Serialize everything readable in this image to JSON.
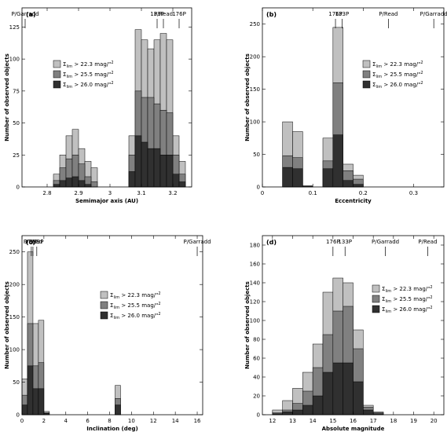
{
  "chart_data": [
    {
      "type": "bar",
      "panel_label": "(a)",
      "xlabel": "Semimajor axis (AU)",
      "ylabel": "Number of observed objects",
      "xlim": [
        2.72,
        3.26
      ],
      "ylim": [
        0,
        140
      ],
      "xticks": [
        2.8,
        2.9,
        3,
        3.1,
        3.2
      ],
      "xtick_labels": [
        "2.8",
        "2.9",
        "3",
        "3.1",
        "3.2"
      ],
      "yticks": [
        0,
        25,
        50,
        75,
        100,
        125
      ],
      "ytick_labels": [
        "0",
        "25",
        "50",
        "75",
        "100",
        "125"
      ],
      "bin_edges": [
        2.82,
        2.84,
        2.86,
        2.88,
        2.9,
        2.92,
        2.94,
        2.96,
        2.98,
        3.0,
        3.02,
        3.04,
        3.06,
        3.08,
        3.1,
        3.12,
        3.14,
        3.16,
        3.18,
        3.2,
        3.22,
        3.24
      ],
      "series": [
        {
          "name": "Σ_lim > 22.3 mag/\"²",
          "color": "#c0c0c0",
          "values": [
            10,
            25,
            40,
            45,
            30,
            20,
            15,
            0,
            0,
            0,
            0,
            0,
            40,
            123,
            115,
            108,
            115,
            120,
            115,
            40,
            20
          ]
        },
        {
          "name": "Σ_lim > 25.5 mag/\"²",
          "color": "#808080",
          "values": [
            5,
            15,
            22,
            25,
            18,
            8,
            4,
            0,
            0,
            0,
            0,
            0,
            25,
            75,
            70,
            70,
            65,
            60,
            58,
            25,
            10
          ]
        },
        {
          "name": "Σ_lim > 26.0 mag/\"²",
          "color": "#303030",
          "values": [
            2,
            5,
            7,
            8,
            5,
            2,
            0,
            0,
            0,
            0,
            0,
            0,
            12,
            40,
            35,
            30,
            30,
            25,
            25,
            10,
            4
          ]
        }
      ],
      "annotations": [
        {
          "text": "P/Garradd",
          "x": 2.73
        },
        {
          "text": "133P",
          "x": 3.15
        },
        {
          "text": "P/Read",
          "x": 3.17
        },
        {
          "text": "176P",
          "x": 3.22
        }
      ],
      "legend": {
        "placement": "center-left",
        "entries": [
          {
            "symbol": "Σ",
            "sub": "lim",
            "rest": " > 22.3 mag/\"",
            "sup": "2"
          },
          {
            "symbol": "Σ",
            "sub": "lim",
            "rest": " > 25.5 mag/\"",
            "sup": "2"
          },
          {
            "symbol": "Σ",
            "sub": "lim",
            "rest": " > 26.0 mag/\"",
            "sup": "2"
          }
        ]
      }
    },
    {
      "type": "bar",
      "panel_label": "(b)",
      "xlabel": "Eccentricity",
      "ylabel": "Number of observed objects",
      "xlim": [
        0,
        0.36
      ],
      "ylim": [
        0,
        275
      ],
      "xticks": [
        0,
        0.1,
        0.2,
        0.3
      ],
      "xtick_labels": [
        "0",
        "0.1",
        "0.2",
        "0.3"
      ],
      "yticks": [
        0,
        50,
        100,
        150,
        200,
        250
      ],
      "ytick_labels": [
        "0",
        "50",
        "100",
        "150",
        "200",
        "250"
      ],
      "bin_edges": [
        0.0,
        0.02,
        0.04,
        0.06,
        0.08,
        0.1,
        0.12,
        0.14,
        0.16,
        0.18,
        0.2,
        0.22
      ],
      "series": [
        {
          "name": "Σ_lim > 22.3 mag/\"²",
          "color": "#c0c0c0",
          "values": [
            0,
            0,
            100,
            85,
            2,
            0,
            75,
            245,
            35,
            18,
            0
          ]
        },
        {
          "name": "Σ_lim > 25.5 mag/\"²",
          "color": "#808080",
          "values": [
            0,
            0,
            48,
            45,
            1,
            0,
            40,
            160,
            25,
            12,
            0
          ]
        },
        {
          "name": "Σ_lim > 26.0 mag/\"²",
          "color": "#303030",
          "values": [
            0,
            0,
            30,
            28,
            0,
            0,
            28,
            80,
            10,
            4,
            0
          ]
        }
      ],
      "annotations": [
        {
          "text": "176P",
          "x": 0.145
        },
        {
          "text": "133P",
          "x": 0.158
        },
        {
          "text": "P/Read",
          "x": 0.25
        },
        {
          "text": "P/Garradd",
          "x": 0.34
        }
      ],
      "legend": {
        "placement": "top-right",
        "entries": [
          {
            "symbol": "Σ",
            "sub": "lim",
            "rest": " > 22.3 mag/\"",
            "sup": "2"
          },
          {
            "symbol": "Σ",
            "sub": "lim",
            "rest": " > 25.5 mag/\"",
            "sup": "2"
          },
          {
            "symbol": "Σ",
            "sub": "lim",
            "rest": " > 26.0 mag/\"",
            "sup": "2"
          }
        ]
      }
    },
    {
      "type": "bar",
      "panel_label": "(c)",
      "xlabel": "Inclination (deg)",
      "ylabel": "Number of observed objects",
      "xlim": [
        0,
        16.5
      ],
      "ylim": [
        0,
        275
      ],
      "xticks": [
        0,
        2,
        4,
        6,
        8,
        10,
        12,
        14,
        16
      ],
      "xtick_labels": [
        "0",
        "2",
        "4",
        "6",
        "8",
        "10",
        "12",
        "14",
        "16"
      ],
      "yticks": [
        0,
        50,
        100,
        150,
        200,
        250
      ],
      "ytick_labels": [
        "0",
        "50",
        "100",
        "150",
        "200",
        "250"
      ],
      "bin_edges": [
        0.0,
        0.5,
        1.0,
        1.5,
        2.0,
        2.5,
        3.0,
        8.5,
        9.0,
        9.5
      ],
      "series": [
        {
          "name": "Σ_lim > 22.3 mag/\"²",
          "color": "#c0c0c0",
          "values": [
            55,
            250,
            140,
            145,
            5,
            0,
            0,
            45,
            0
          ]
        },
        {
          "name": "Σ_lim > 25.5 mag/\"²",
          "color": "#808080",
          "values": [
            30,
            140,
            75,
            80,
            3,
            0,
            0,
            25,
            0
          ]
        },
        {
          "name": "Σ_lim > 26.0 mag/\"²",
          "color": "#303030",
          "values": [
            15,
            75,
            40,
            40,
            2,
            0,
            0,
            15,
            0
          ]
        }
      ],
      "annotations": [
        {
          "text": "P/Read",
          "x": 1.0
        },
        {
          "text": "176P",
          "x": 0.85
        },
        {
          "text": "133P",
          "x": 1.35
        },
        {
          "text": "P/Garradd",
          "x": 16.0
        }
      ],
      "legend": {
        "placement": "center-right",
        "entries": [
          {
            "symbol": "Σ",
            "sub": "lim",
            "rest": " > 22.3 mag/\"",
            "sup": "2"
          },
          {
            "symbol": "Σ",
            "sub": "lim",
            "rest": " > 25.5 mag/\"",
            "sup": "2"
          },
          {
            "symbol": "Σ",
            "sub": "lim",
            "rest": " > 26.0 mag/\"",
            "sup": "2"
          }
        ]
      }
    },
    {
      "type": "bar",
      "panel_label": "(d)",
      "xlabel": "Absolute magnitude",
      "ylabel": "Number of observed objects",
      "xlim": [
        11.5,
        20.5
      ],
      "ylim": [
        0,
        190
      ],
      "xticks": [
        12,
        13,
        14,
        15,
        16,
        17,
        18,
        19,
        20
      ],
      "xtick_labels": [
        "12",
        "13",
        "14",
        "15",
        "16",
        "17",
        "18",
        "19",
        "20"
      ],
      "yticks": [
        0,
        20,
        40,
        60,
        80,
        100,
        120,
        140,
        160,
        180
      ],
      "ytick_labels": [
        "0",
        "20",
        "40",
        "60",
        "80",
        "100",
        "120",
        "140",
        "160",
        "180"
      ],
      "bin_edges": [
        12.0,
        12.5,
        13.0,
        13.5,
        14.0,
        14.5,
        15.0,
        15.5,
        16.0,
        16.5,
        17.0,
        17.5
      ],
      "series": [
        {
          "name": "Σ_lim > 22.3 mag/\"²",
          "color": "#c0c0c0",
          "values": [
            5,
            15,
            28,
            45,
            75,
            130,
            145,
            140,
            90,
            10,
            3
          ]
        },
        {
          "name": "Σ_lim > 25.5 mag/\"²",
          "color": "#808080",
          "values": [
            2,
            5,
            12,
            25,
            50,
            85,
            110,
            115,
            70,
            8,
            2
          ]
        },
        {
          "name": "Σ_lim > 26.0 mag/\"²",
          "color": "#303030",
          "values": [
            1,
            3,
            5,
            10,
            20,
            45,
            55,
            55,
            35,
            5,
            1
          ]
        }
      ],
      "annotations": [
        {
          "text": "176P",
          "x": 15.0
        },
        {
          "text": "133P",
          "x": 15.6
        },
        {
          "text": "P/Garradd",
          "x": 17.6
        },
        {
          "text": "P/Read",
          "x": 19.7
        }
      ],
      "legend": {
        "placement": "center-right",
        "entries": [
          {
            "symbol": "Σ",
            "sub": "lim",
            "rest": " > 22.3 mag/\"",
            "sup": "2"
          },
          {
            "symbol": "Σ",
            "sub": "lim",
            "rest": " > 25.5 mag/\"",
            "sup": "2"
          },
          {
            "symbol": "Σ",
            "sub": "lim",
            "rest": " > 26.0 mag/\"",
            "sup": "2"
          }
        ]
      }
    }
  ]
}
